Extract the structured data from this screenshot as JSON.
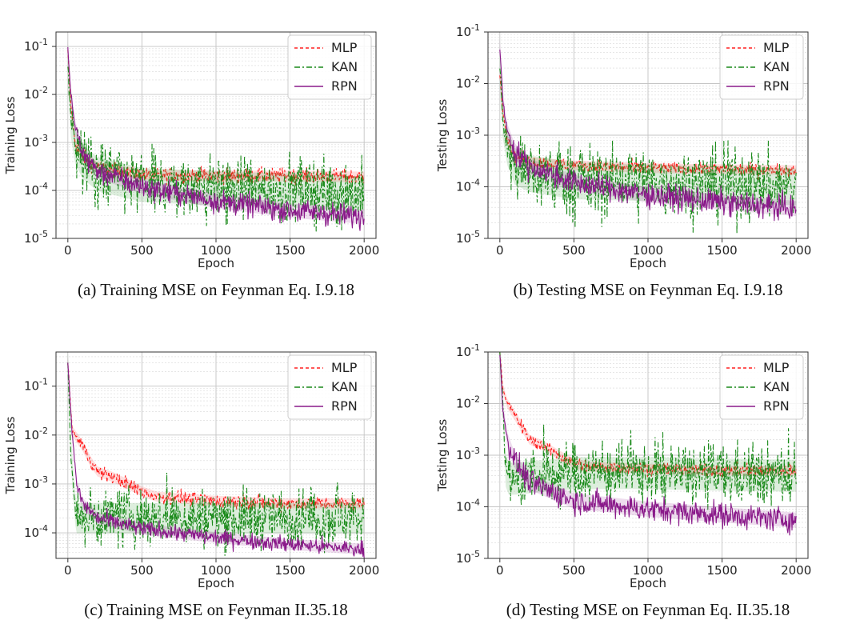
{
  "chart_data": [
    {
      "type": "line",
      "caption": "(a) Training MSE on Feynman Eq. I.9.18",
      "xlabel": "Epoch",
      "ylabel": "Training Loss",
      "xlim": [
        0,
        2000
      ],
      "ylim": [
        1e-05,
        0.2
      ],
      "yscale": "log",
      "grid": true,
      "legend_position": "top-right",
      "xticks": [
        "0",
        "500",
        "1000",
        "1500",
        "2000"
      ],
      "yticks": [
        {
          "exp": "-1",
          "v": 0.1
        },
        {
          "exp": "-2",
          "v": 0.01
        },
        {
          "exp": "-3",
          "v": 0.001
        },
        {
          "exp": "-4",
          "v": 0.0001
        },
        {
          "exp": "-5",
          "v": 1e-05
        }
      ],
      "series": [
        {
          "name": "MLP",
          "color": "#ff2020",
          "dash": "4,3",
          "noise": 0.08,
          "points": [
            [
              0,
              0.08
            ],
            [
              20,
              0.006
            ],
            [
              50,
              0.0009
            ],
            [
              100,
              0.0005
            ],
            [
              200,
              0.0003
            ],
            [
              500,
              0.00021
            ],
            [
              1000,
              0.0002
            ],
            [
              1500,
              0.0002
            ],
            [
              2000,
              0.00019
            ]
          ]
        },
        {
          "name": "KAN",
          "color": "#1a8a1a",
          "dash": "7,3,2,3",
          "noise": 0.35,
          "points": [
            [
              0,
              0.05
            ],
            [
              20,
              0.003
            ],
            [
              50,
              0.0008
            ],
            [
              100,
              0.0004
            ],
            [
              200,
              0.00022
            ],
            [
              500,
              0.00013
            ],
            [
              1000,
              0.00011
            ],
            [
              1500,
              0.0001
            ],
            [
              2000,
              8.5e-05
            ]
          ]
        },
        {
          "name": "RPN",
          "color": "#8a1a8a",
          "dash": "",
          "noise": 0.12,
          "points": [
            [
              0,
              0.09
            ],
            [
              20,
              0.01
            ],
            [
              50,
              0.002
            ],
            [
              100,
              0.0006
            ],
            [
              200,
              0.00025
            ],
            [
              500,
              0.00012
            ],
            [
              1000,
              6e-05
            ],
            [
              1500,
              3.8e-05
            ],
            [
              2000,
              2.8e-05
            ]
          ]
        }
      ]
    },
    {
      "type": "line",
      "caption": "(b) Testing MSE on Feynman Eq. I.9.18",
      "xlabel": "Epoch",
      "ylabel": "Testing Loss",
      "xlim": [
        0,
        2000
      ],
      "ylim": [
        1e-05,
        0.1
      ],
      "yscale": "log",
      "grid": true,
      "legend_position": "top-right",
      "xticks": [
        "0",
        "500",
        "1000",
        "1500",
        "2000"
      ],
      "yticks": [
        {
          "exp": "-1",
          "v": 0.1
        },
        {
          "exp": "-2",
          "v": 0.01
        },
        {
          "exp": "-3",
          "v": 0.001
        },
        {
          "exp": "-4",
          "v": 0.0001
        },
        {
          "exp": "-5",
          "v": 1e-05
        }
      ],
      "series": [
        {
          "name": "MLP",
          "color": "#ff2020",
          "dash": "4,3",
          "noise": 0.06,
          "points": [
            [
              0,
              0.015
            ],
            [
              20,
              0.003
            ],
            [
              50,
              0.0008
            ],
            [
              100,
              0.0004
            ],
            [
              200,
              0.0003
            ],
            [
              500,
              0.00026
            ],
            [
              1000,
              0.00023
            ],
            [
              1500,
              0.00022
            ],
            [
              2000,
              0.00021
            ]
          ]
        },
        {
          "name": "KAN",
          "color": "#1a8a1a",
          "dash": "7,3,2,3",
          "noise": 0.35,
          "points": [
            [
              0,
              0.02
            ],
            [
              20,
              0.002
            ],
            [
              50,
              0.0006
            ],
            [
              100,
              0.00025
            ],
            [
              200,
              0.00018
            ],
            [
              500,
              0.00013
            ],
            [
              1000,
              0.00012
            ],
            [
              1500,
              0.00011
            ],
            [
              2000,
              0.0001
            ]
          ]
        },
        {
          "name": "RPN",
          "color": "#8a1a8a",
          "dash": "",
          "noise": 0.12,
          "points": [
            [
              0,
              0.05
            ],
            [
              20,
              0.005
            ],
            [
              50,
              0.0012
            ],
            [
              100,
              0.0005
            ],
            [
              200,
              0.00025
            ],
            [
              500,
              0.00012
            ],
            [
              1000,
              7e-05
            ],
            [
              1500,
              5e-05
            ],
            [
              2000,
              3.8e-05
            ]
          ]
        }
      ]
    },
    {
      "type": "line",
      "caption": "(c) Training MSE on Feynman II.35.18",
      "xlabel": "Epoch",
      "ylabel": "Training Loss",
      "xlim": [
        0,
        2000
      ],
      "ylim": [
        3e-05,
        0.5
      ],
      "yscale": "log",
      "grid": true,
      "legend_position": "top-right",
      "xticks": [
        "0",
        "500",
        "1000",
        "1500",
        "2000"
      ],
      "yticks": [
        {
          "exp": "-1",
          "v": 0.1
        },
        {
          "exp": "-2",
          "v": 0.01
        },
        {
          "exp": "-3",
          "v": 0.001
        },
        {
          "exp": "-4",
          "v": 0.0001
        }
      ],
      "series": [
        {
          "name": "MLP",
          "color": "#ff2020",
          "dash": "4,3",
          "noise": 0.07,
          "points": [
            [
              0,
              0.3
            ],
            [
              30,
              0.012
            ],
            [
              100,
              0.006
            ],
            [
              150,
              0.003
            ],
            [
              200,
              0.0018
            ],
            [
              300,
              0.0014
            ],
            [
              400,
              0.001
            ],
            [
              500,
              0.0007
            ],
            [
              600,
              0.00055
            ],
            [
              1000,
              0.00045
            ],
            [
              1500,
              0.0004
            ],
            [
              2000,
              0.0004
            ]
          ]
        },
        {
          "name": "KAN",
          "color": "#1a8a1a",
          "dash": "7,3,2,3",
          "noise": 0.3,
          "points": [
            [
              0,
              0.3
            ],
            [
              20,
              0.005
            ],
            [
              50,
              0.0003
            ],
            [
              60,
              0.0002
            ],
            [
              500,
              0.0002
            ],
            [
              1000,
              0.0002
            ],
            [
              1500,
              0.0002
            ],
            [
              2000,
              0.0002
            ]
          ]
        },
        {
          "name": "RPN",
          "color": "#8a1a8a",
          "dash": "",
          "noise": 0.08,
          "points": [
            [
              0,
              0.3
            ],
            [
              30,
              0.01
            ],
            [
              60,
              0.001
            ],
            [
              100,
              0.0004
            ],
            [
              200,
              0.0002
            ],
            [
              500,
              0.00012
            ],
            [
              1000,
              8e-05
            ],
            [
              1500,
              5.8e-05
            ],
            [
              2000,
              4.6e-05
            ]
          ]
        }
      ]
    },
    {
      "type": "line",
      "caption": "(d) Testing MSE on Feynman Eq. II.35.18",
      "xlabel": "Epoch",
      "ylabel": "Testing Loss",
      "xlim": [
        0,
        2000
      ],
      "ylim": [
        1e-05,
        0.1
      ],
      "yscale": "log",
      "grid": true,
      "legend_position": "top-right",
      "xticks": [
        "0",
        "500",
        "1000",
        "1500",
        "2000"
      ],
      "yticks": [
        {
          "exp": "-1",
          "v": 0.1
        },
        {
          "exp": "-2",
          "v": 0.01
        },
        {
          "exp": "-3",
          "v": 0.001
        },
        {
          "exp": "-4",
          "v": 0.0001
        },
        {
          "exp": "-5",
          "v": 1e-05
        }
      ],
      "series": [
        {
          "name": "MLP",
          "color": "#ff2020",
          "dash": "4,3",
          "noise": 0.06,
          "points": [
            [
              0,
              0.1
            ],
            [
              20,
              0.02
            ],
            [
              50,
              0.01
            ],
            [
              100,
              0.006
            ],
            [
              200,
              0.002
            ],
            [
              300,
              0.0015
            ],
            [
              400,
              0.001
            ],
            [
              500,
              0.0007
            ],
            [
              600,
              0.0006
            ],
            [
              1000,
              0.00055
            ],
            [
              1500,
              0.0005
            ],
            [
              2000,
              0.0005
            ]
          ]
        },
        {
          "name": "KAN",
          "color": "#1a8a1a",
          "dash": "7,3,2,3",
          "noise": 0.3,
          "points": [
            [
              0,
              0.1
            ],
            [
              20,
              0.01
            ],
            [
              40,
              0.0005
            ],
            [
              60,
              0.00035
            ],
            [
              100,
              0.00035
            ],
            [
              500,
              0.00045
            ],
            [
              1000,
              0.00045
            ],
            [
              1500,
              0.00042
            ],
            [
              2000,
              0.0004
            ]
          ]
        },
        {
          "name": "RPN",
          "color": "#8a1a8a",
          "dash": "",
          "noise": 0.12,
          "points": [
            [
              0,
              0.1
            ],
            [
              20,
              0.008
            ],
            [
              50,
              0.002
            ],
            [
              100,
              0.0008
            ],
            [
              200,
              0.0003
            ],
            [
              500,
              0.00013
            ],
            [
              1000,
              9e-05
            ],
            [
              1500,
              7e-05
            ],
            [
              2000,
              5.5e-05
            ]
          ]
        }
      ]
    }
  ]
}
